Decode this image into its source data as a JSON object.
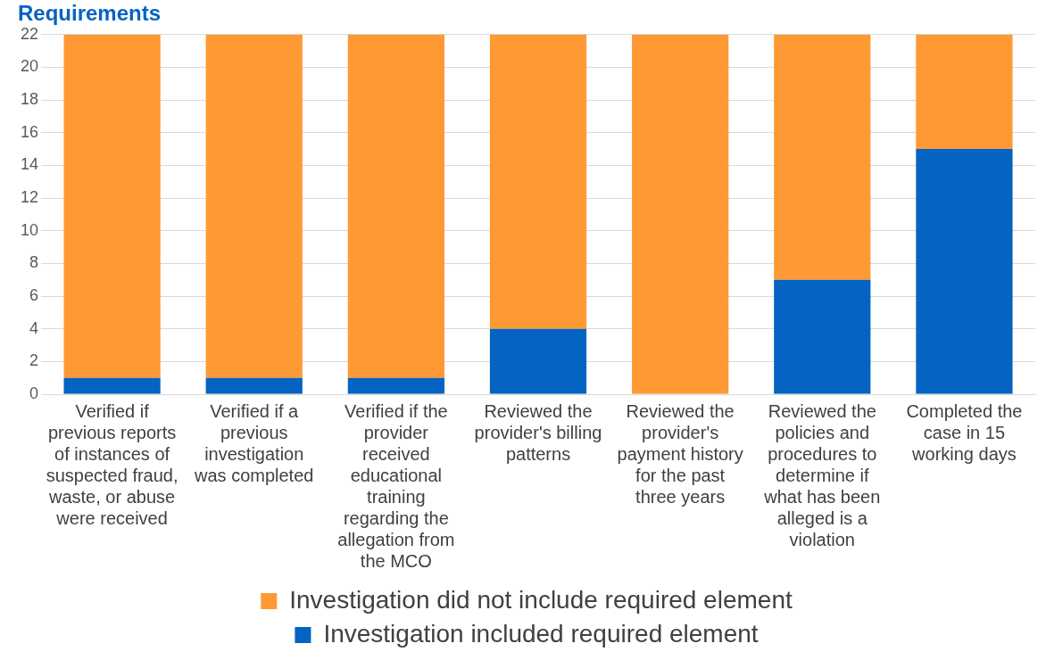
{
  "chart_data": {
    "type": "bar",
    "title": "Requirements",
    "stacked": true,
    "categories": [
      "Verified if previous reports of instances of suspected fraud, waste, or abuse were received",
      "Verified if a previous investigation was completed",
      "Verified if the provider received educational training regarding the allegation from the MCO",
      "Reviewed the provider's billing patterns",
      "Reviewed the provider's payment history for the past three years",
      "Reviewed the policies and procedures to determine if what has been alleged is a violation",
      "Completed the case in 15 working days"
    ],
    "series": [
      {
        "name": "Investigation included required element",
        "color": "#0563c1",
        "values": [
          1,
          1,
          1,
          4,
          0,
          7,
          15
        ]
      },
      {
        "name": "Investigation did not include required element",
        "color": "#ff9933",
        "values": [
          21,
          21,
          21,
          18,
          22,
          15,
          7
        ]
      }
    ],
    "ylim": [
      0,
      22
    ],
    "yticks": [
      0,
      2,
      4,
      6,
      8,
      10,
      12,
      14,
      16,
      18,
      20,
      22
    ],
    "grid": "y",
    "legend": "bottom"
  }
}
